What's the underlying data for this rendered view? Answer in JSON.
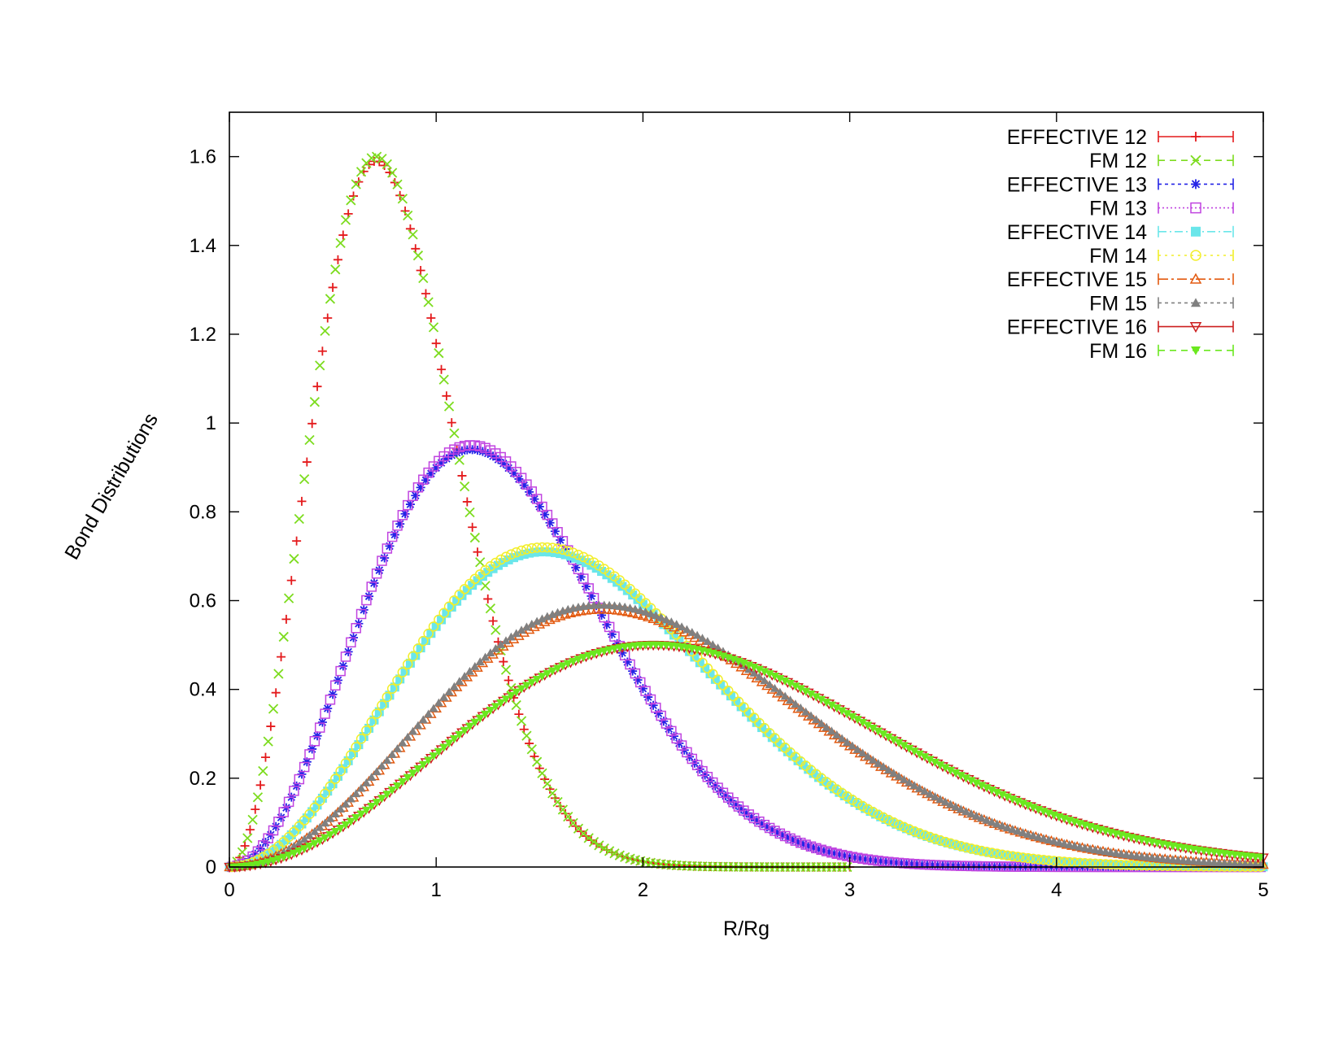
{
  "chart_data": {
    "type": "scatter",
    "title": "",
    "xlabel": "R/Rg",
    "ylabel": "Bond Distributions",
    "xlim": [
      0,
      5
    ],
    "ylim": [
      0,
      1.7
    ],
    "x_ticks": [
      0,
      1,
      2,
      3,
      4,
      5
    ],
    "x_tick_labels": [
      "0",
      "1",
      "2",
      "3",
      "4",
      "5"
    ],
    "y_ticks": [
      0,
      0.2,
      0.4,
      0.6,
      0.8,
      1.0,
      1.2,
      1.4,
      1.6
    ],
    "y_tick_labels": [
      "0",
      "0.2",
      "0.4",
      "0.6",
      "0.8",
      "1",
      "1.2",
      "1.4",
      "1.6"
    ],
    "grid": false,
    "legend_position": "top-right",
    "x_step": 0.05,
    "series": [
      {
        "name": "EFFECTIVE 12",
        "color": "#e41a1c",
        "marker": "plus",
        "dash": "",
        "peak_x": 0.71,
        "peak_y": 1.59,
        "width": 0.22,
        "x_max": 3.0
      },
      {
        "name": "FM 12",
        "color": "#7ddc1f",
        "marker": "cross",
        "dash": "8,6",
        "peak_x": 0.71,
        "peak_y": 1.6,
        "width": 0.22,
        "x_max": 3.0
      },
      {
        "name": "EFFECTIVE 13",
        "color": "#2424e6",
        "marker": "star",
        "dash": "4,4",
        "peak_x": 1.17,
        "peak_y": 0.94,
        "width": 0.38,
        "x_max": 5.0
      },
      {
        "name": "FM 13",
        "color": "#c044e0",
        "marker": "square",
        "dash": "2,3",
        "peak_x": 1.17,
        "peak_y": 0.95,
        "width": 0.38,
        "x_max": 5.0
      },
      {
        "name": "EFFECTIVE 14",
        "color": "#6ae6ea",
        "marker": "filled-square",
        "dash": "10,4,2,4",
        "peak_x": 1.52,
        "peak_y": 0.71,
        "width": 0.5,
        "x_max": 5.0
      },
      {
        "name": "FM 14",
        "color": "#f2ee2a",
        "marker": "circle",
        "dash": "3,5",
        "peak_x": 1.52,
        "peak_y": 0.72,
        "width": 0.5,
        "x_max": 5.0
      },
      {
        "name": "EFFECTIVE 15",
        "color": "#e35a10",
        "marker": "triangle",
        "dash": "12,4,3,4",
        "peak_x": 1.8,
        "peak_y": 0.58,
        "width": 0.62,
        "x_max": 5.0
      },
      {
        "name": "FM 15",
        "color": "#808080",
        "marker": "filled-triangle",
        "dash": "4,4",
        "peak_x": 1.8,
        "peak_y": 0.59,
        "width": 0.62,
        "x_max": 5.0
      },
      {
        "name": "EFFECTIVE 16",
        "color": "#cc1f1f",
        "marker": "inverted-triangle",
        "dash": "",
        "peak_x": 2.05,
        "peak_y": 0.5,
        "width": 0.72,
        "x_max": 5.0
      },
      {
        "name": "FM 16",
        "color": "#6be81f",
        "marker": "filled-inverted-triangle",
        "dash": "8,6",
        "peak_x": 2.05,
        "peak_y": 0.5,
        "width": 0.72,
        "x_max": 5.0
      }
    ]
  }
}
